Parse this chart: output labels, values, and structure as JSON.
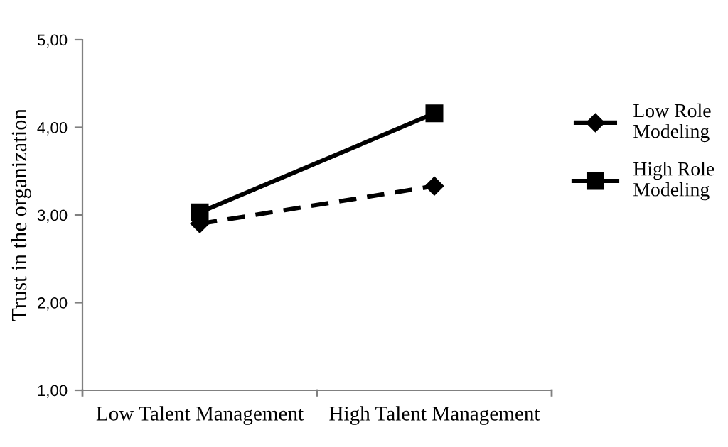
{
  "chart_data": {
    "type": "line",
    "ylabel": "Trust in the organization",
    "categories": [
      "Low Talent Management",
      "High Talent Management"
    ],
    "series": [
      {
        "name": "Low Role Modeling",
        "color": "#000000",
        "values": [
          2.9,
          3.33
        ],
        "marker": "diamond",
        "line_style": "dashed"
      },
      {
        "name": "High Role Modeling",
        "color": "#000000",
        "values": [
          3.03,
          4.16
        ],
        "marker": "square",
        "line_style": "solid"
      }
    ],
    "ylim": [
      1,
      5
    ],
    "yticks": [
      {
        "value": 1,
        "label": "1,00"
      },
      {
        "value": 2,
        "label": "2,00"
      },
      {
        "value": 3,
        "label": "3,00"
      },
      {
        "value": 4,
        "label": "4,00"
      },
      {
        "value": 5,
        "label": "5,00"
      }
    ],
    "grid": false,
    "legend": "right"
  }
}
